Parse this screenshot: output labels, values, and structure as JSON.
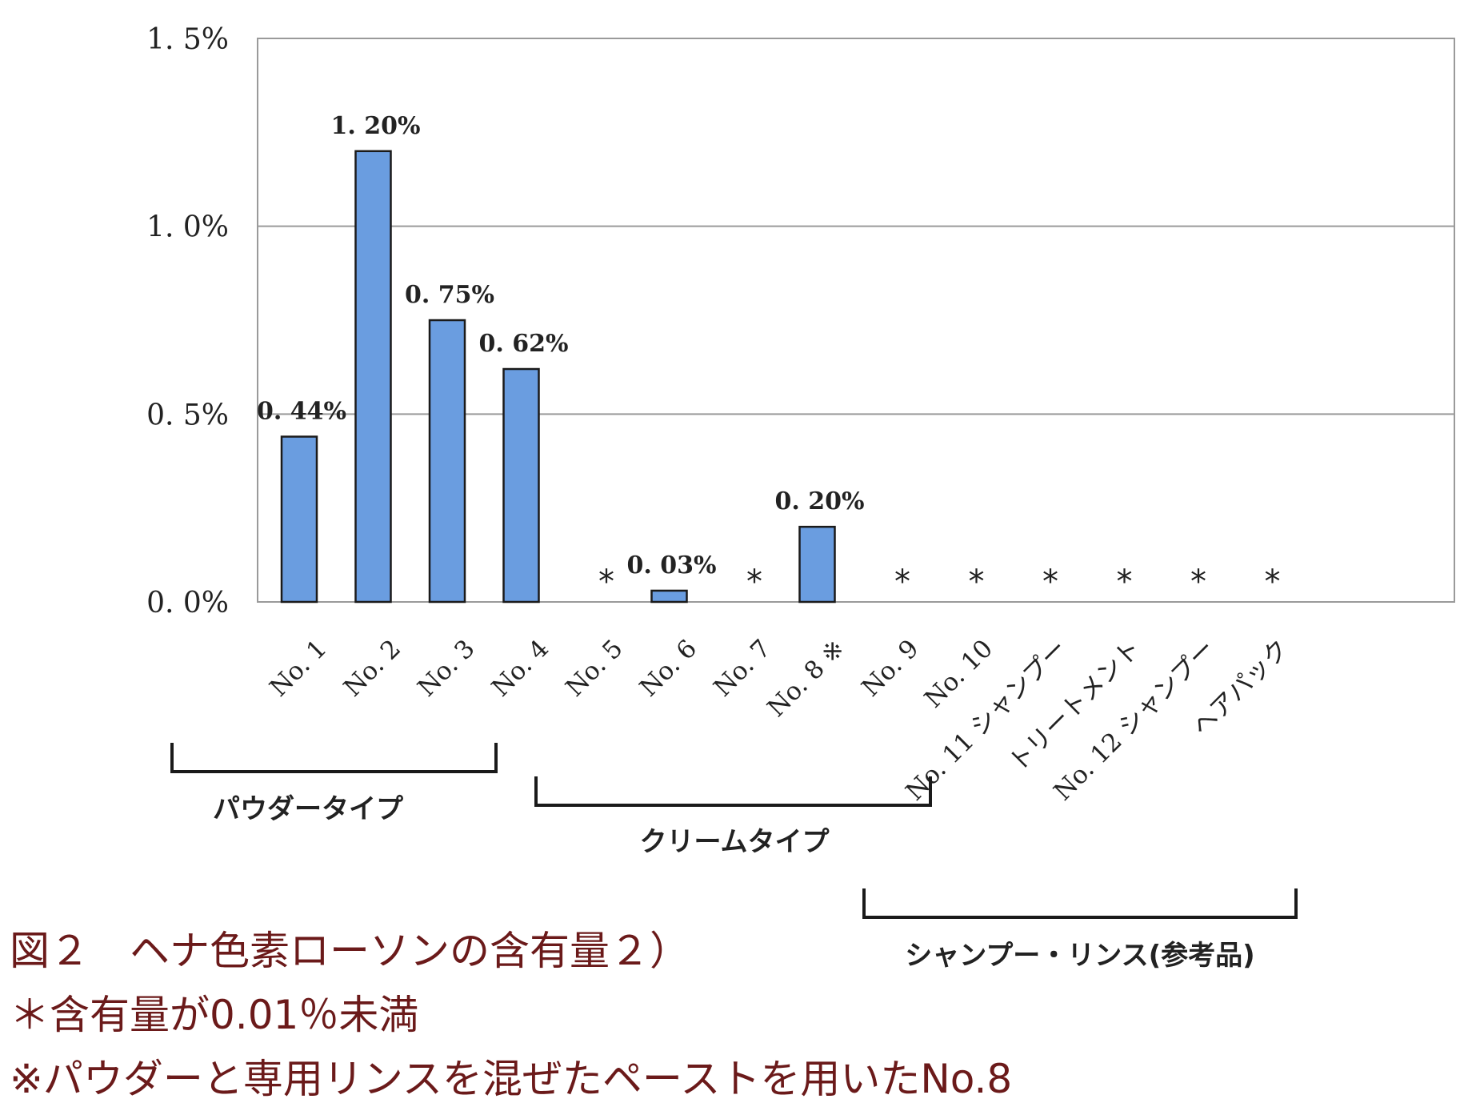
{
  "chart_data": {
    "type": "bar",
    "categories": [
      "No. 1",
      "No. 2",
      "No. 3",
      "No. 4",
      "No. 5",
      "No. 6",
      "No. 7",
      "No. 8 ※",
      "No. 9",
      "No. 10",
      "No. 11 シャンプー",
      "トリートメント",
      "No. 12 シャンプー",
      "ヘアパック"
    ],
    "values": [
      0.44,
      1.2,
      0.75,
      0.62,
      null,
      0.03,
      null,
      0.2,
      null,
      null,
      null,
      null,
      null,
      null
    ],
    "value_labels": [
      "0. 44%",
      "1. 20%",
      "0. 75%",
      "0. 62%",
      "*",
      "0. 03%",
      "*",
      "0. 20%",
      "*",
      "*",
      "*",
      "*",
      "*",
      "*"
    ],
    "ylim": [
      0,
      1.5
    ],
    "yticks": [
      0,
      0.5,
      1.0,
      1.5
    ],
    "ytick_labels": [
      "0. 0%",
      "0. 5%",
      "1. 0%",
      "1. 5%"
    ],
    "grid": true,
    "bar_color": "#6a9de0",
    "groups": [
      {
        "label": "パウダータイプ",
        "from": 0,
        "to": 3
      },
      {
        "label": "クリームタイプ",
        "from": 4,
        "to": 8
      },
      {
        "label": "シャンプー・リンス(参考品)",
        "from": 9,
        "to": 13
      }
    ]
  },
  "caption": {
    "title": "図２　ヘナ色素ローソンの含有量２）",
    "note1": "＊含有量が0.01％未満",
    "note2": "※パウダーと専用リンスを混ぜたペーストを用いたNo.8"
  }
}
